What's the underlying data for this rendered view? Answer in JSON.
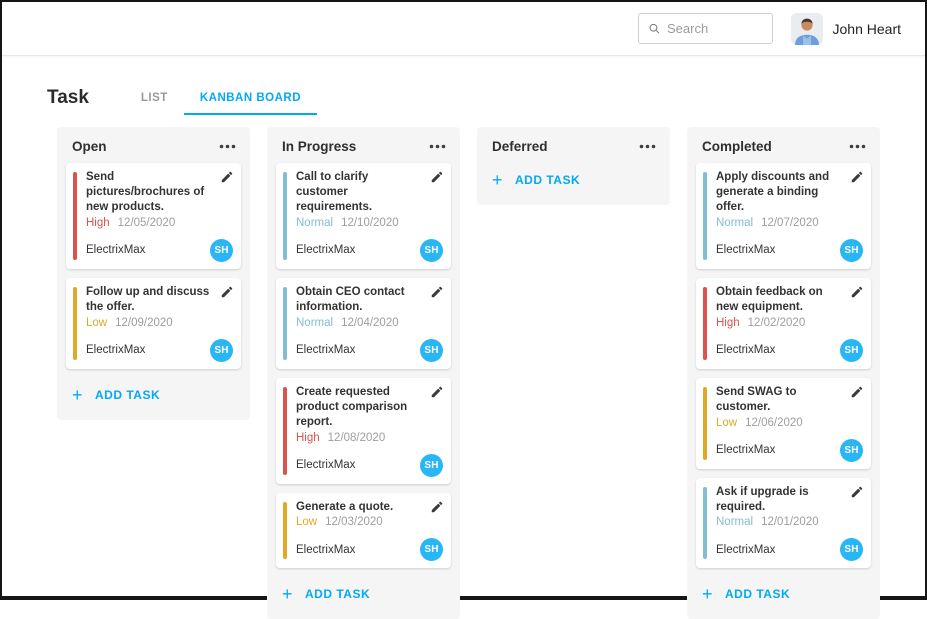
{
  "header": {
    "search_placeholder": "Search",
    "user_name": "John Heart"
  },
  "page": {
    "title": "Task",
    "tabs": [
      {
        "label": "LIST",
        "active": false
      },
      {
        "label": "KANBAN BOARD",
        "active": true
      }
    ]
  },
  "board": {
    "add_task_label": "ADD TASK",
    "columns": [
      {
        "title": "Open",
        "cards": [
          {
            "title": "Send pictures/brochures of new products.",
            "priority": "High",
            "date": "12/05/2020",
            "company": "ElectrixMax",
            "assignee": "SH"
          },
          {
            "title": "Follow up and discuss the offer.",
            "priority": "Low",
            "date": "12/09/2020",
            "company": "ElectrixMax",
            "assignee": "SH"
          }
        ]
      },
      {
        "title": "In Progress",
        "cards": [
          {
            "title": "Call to clarify customer requirements.",
            "priority": "Normal",
            "date": "12/10/2020",
            "company": "ElectrixMax",
            "assignee": "SH"
          },
          {
            "title": "Obtain CEO contact information.",
            "priority": "Normal",
            "date": "12/04/2020",
            "company": "ElectrixMax",
            "assignee": "SH"
          },
          {
            "title": "Create requested product comparison report.",
            "priority": "High",
            "date": "12/08/2020",
            "company": "ElectrixMax",
            "assignee": "SH"
          },
          {
            "title": "Generate a quote.",
            "priority": "Low",
            "date": "12/03/2020",
            "company": "ElectrixMax",
            "assignee": "SH"
          }
        ]
      },
      {
        "title": "Deferred",
        "cards": []
      },
      {
        "title": "Completed",
        "cards": [
          {
            "title": "Apply discounts and generate a binding offer.",
            "priority": "Normal",
            "date": "12/07/2020",
            "company": "ElectrixMax",
            "assignee": "SH"
          },
          {
            "title": "Obtain feedback on new equipment.",
            "priority": "High",
            "date": "12/02/2020",
            "company": "ElectrixMax",
            "assignee": "SH"
          },
          {
            "title": "Send SWAG to customer.",
            "priority": "Low",
            "date": "12/06/2020",
            "company": "ElectrixMax",
            "assignee": "SH"
          },
          {
            "title": "Ask if upgrade is required.",
            "priority": "Normal",
            "date": "12/01/2020",
            "company": "ElectrixMax",
            "assignee": "SH"
          }
        ]
      }
    ]
  },
  "colors": {
    "accent": "#03a9f4",
    "priority": {
      "High": "#d9534f",
      "Low": "#dfa927",
      "Normal": "#82bdd1"
    },
    "assignee_avatar_bg": "#29b6f6"
  },
  "icons": {
    "search": "magnifier-icon",
    "column_menu": "ellipsis-icon",
    "card_edit": "pencil-icon",
    "add_task": "plus-icon",
    "user": "user-photo-avatar"
  }
}
